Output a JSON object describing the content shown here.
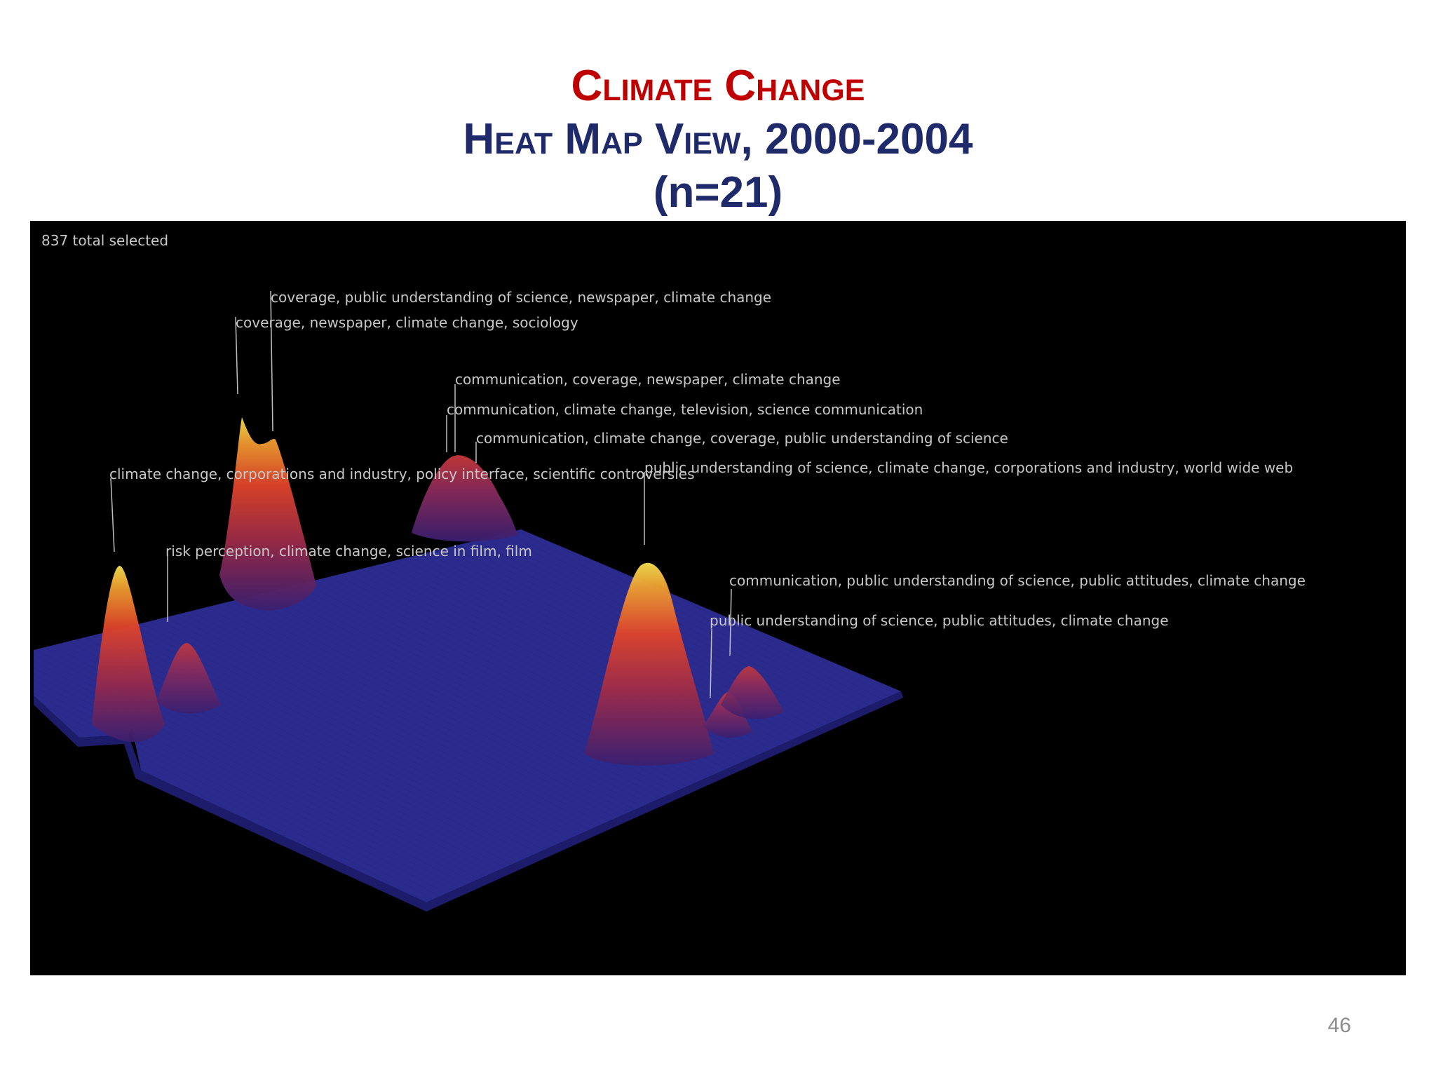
{
  "slide": {
    "title_line1": "Climate Change",
    "title_line2": "Heat Map View, 2000-2004",
    "title_line3": "(n=21)",
    "page_number": "46"
  },
  "visualization": {
    "selection_status": "837 total selected",
    "labels": [
      "coverage, public understanding of science, newspaper, climate change",
      "coverage, newspaper, climate change, sociology",
      "communication, coverage, newspaper, climate change",
      "communication, climate change, television, science communication",
      "communication, climate change, coverage, public understanding of science",
      "climate change, corporations and industry, policy interface, scientific controversies",
      "public understanding of science, climate change, corporations and industry, world wide web",
      "risk perception, climate change, science in film, film",
      "communication, public understanding of science, public attitudes, climate change",
      "public understanding of science, public attitudes, climate change"
    ],
    "colors": {
      "background": "#000000",
      "surface": "#2a2a8c",
      "peak_low": "#4a2278",
      "peak_mid": "#d8352a",
      "peak_high": "#f0d040",
      "label_text": "#c8c8c8"
    }
  }
}
